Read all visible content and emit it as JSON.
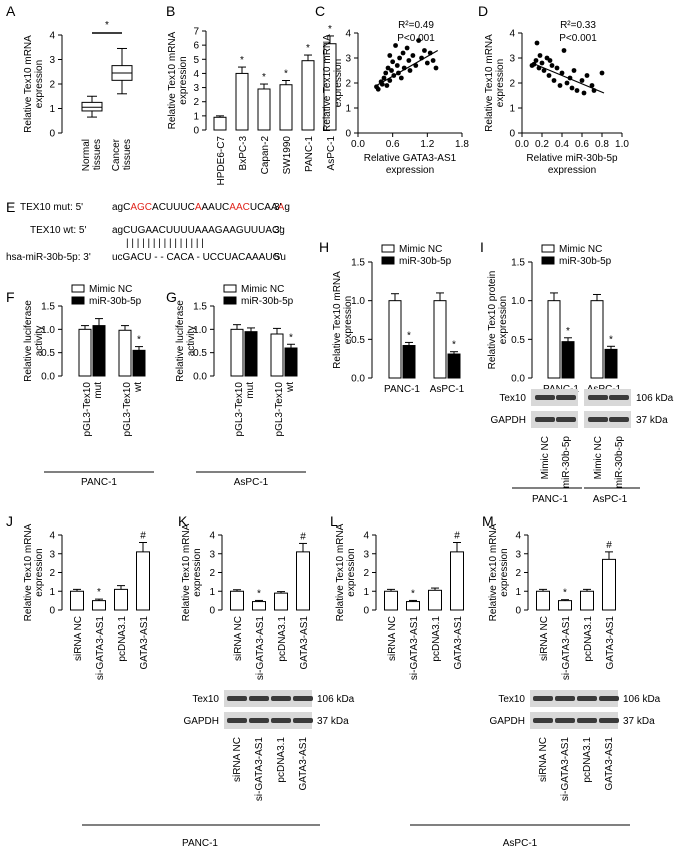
{
  "panels": {
    "A": {
      "label": "A",
      "ylabel": "Relative Tex10 mRNA expression",
      "yticks": [
        "0",
        "1",
        "2",
        "3",
        "4"
      ],
      "ylim": [
        0,
        4
      ],
      "categories": [
        "Normal tissues",
        "Cancer tissues"
      ],
      "boxes": [
        {
          "min": 0.65,
          "q1": 0.9,
          "median": 1.05,
          "q3": 1.25,
          "max": 1.5
        },
        {
          "min": 1.6,
          "q1": 2.15,
          "median": 2.45,
          "q3": 2.75,
          "max": 3.45
        }
      ],
      "sig": "*"
    },
    "B": {
      "label": "B",
      "ylabel": "Relative Tex10 mRNA expression",
      "yticks": [
        "0",
        "1",
        "2",
        "3",
        "4",
        "5",
        "6",
        "7"
      ],
      "ylim": [
        0,
        7
      ],
      "categories": [
        "HPDE6-C7",
        "BxPC-3",
        "Capan-2",
        "SW1990",
        "PANC-1",
        "AsPC-1"
      ],
      "values": [
        0.9,
        4.0,
        2.9,
        3.2,
        4.9,
        6.1
      ],
      "errors": [
        0.1,
        0.45,
        0.35,
        0.3,
        0.4,
        0.55
      ],
      "sig": [
        "",
        "*",
        "*",
        "*",
        "*",
        "*"
      ]
    },
    "C": {
      "label": "C",
      "stat1": "R²=0.49",
      "stat2": "P<0.001",
      "ylabel": "Relative Tex10 mRNA expression",
      "xlabel1": "Relative GATA3-AS1",
      "xlabel2": "expression",
      "yticks": [
        "0",
        "1",
        "2",
        "3",
        "4"
      ],
      "xticks": [
        "0.0",
        "0.6",
        "1.2",
        "1.8"
      ],
      "xlim": [
        0,
        1.8
      ],
      "ylim": [
        0,
        4
      ],
      "points": [
        [
          0.32,
          1.85
        ],
        [
          0.35,
          1.75
        ],
        [
          0.4,
          2.05
        ],
        [
          0.42,
          1.95
        ],
        [
          0.45,
          2.2
        ],
        [
          0.48,
          2.4
        ],
        [
          0.5,
          1.9
        ],
        [
          0.52,
          2.6
        ],
        [
          0.55,
          2.1
        ],
        [
          0.58,
          2.5
        ],
        [
          0.6,
          2.85
        ],
        [
          0.62,
          2.3
        ],
        [
          0.65,
          3.5
        ],
        [
          0.68,
          2.7
        ],
        [
          0.7,
          2.4
        ],
        [
          0.72,
          3.0
        ],
        [
          0.75,
          2.2
        ],
        [
          0.78,
          3.2
        ],
        [
          0.8,
          2.6
        ],
        [
          0.85,
          3.4
        ],
        [
          0.88,
          2.9
        ],
        [
          0.9,
          2.5
        ],
        [
          0.95,
          3.1
        ],
        [
          1.0,
          2.7
        ],
        [
          1.05,
          3.7
        ],
        [
          1.1,
          3.0
        ],
        [
          1.15,
          3.3
        ],
        [
          1.2,
          2.8
        ],
        [
          1.25,
          3.2
        ],
        [
          1.3,
          2.9
        ],
        [
          1.35,
          2.6
        ],
        [
          0.55,
          3.1
        ]
      ],
      "fit": [
        [
          0.32,
          1.9
        ],
        [
          1.38,
          3.3
        ]
      ]
    },
    "D": {
      "label": "D",
      "stat1": "R²=0.33",
      "stat2": "P<0.001",
      "ylabel": "Relative Tex10 mRNA expression",
      "xlabel1": "Relative miR-30b-5p",
      "xlabel2": "expression",
      "yticks": [
        "0",
        "1",
        "2",
        "3",
        "4"
      ],
      "xticks": [
        "0.0",
        "0.2",
        "0.4",
        "0.6",
        "0.8",
        "1.0"
      ],
      "xlim": [
        0,
        1.0
      ],
      "ylim": [
        0,
        4
      ],
      "points": [
        [
          0.12,
          2.75
        ],
        [
          0.14,
          2.9
        ],
        [
          0.15,
          3.6
        ],
        [
          0.17,
          2.6
        ],
        [
          0.18,
          3.1
        ],
        [
          0.2,
          2.8
        ],
        [
          0.22,
          2.5
        ],
        [
          0.25,
          3.0
        ],
        [
          0.27,
          2.3
        ],
        [
          0.3,
          2.7
        ],
        [
          0.32,
          2.1
        ],
        [
          0.35,
          2.6
        ],
        [
          0.38,
          1.9
        ],
        [
          0.4,
          2.4
        ],
        [
          0.42,
          3.3
        ],
        [
          0.45,
          2.0
        ],
        [
          0.48,
          2.2
        ],
        [
          0.5,
          1.8
        ],
        [
          0.52,
          2.5
        ],
        [
          0.55,
          1.7
        ],
        [
          0.6,
          2.1
        ],
        [
          0.62,
          1.6
        ],
        [
          0.65,
          2.3
        ],
        [
          0.7,
          1.9
        ],
        [
          0.72,
          1.7
        ],
        [
          0.8,
          2.4
        ],
        [
          0.1,
          2.7
        ],
        [
          0.28,
          2.9
        ]
      ],
      "fit": [
        [
          0.1,
          2.8
        ],
        [
          0.82,
          1.6
        ]
      ]
    },
    "E": {
      "label": "E",
      "mut_label": "TEX10 mut: 5'",
      "mut_seq": [
        {
          "t": "agC",
          "r": false
        },
        {
          "t": "AGC",
          "r": true
        },
        {
          "t": "ACUUUC",
          "r": false
        },
        {
          "t": "A",
          "r": true
        },
        {
          "t": "AAUC",
          "r": false
        },
        {
          "t": "AAC",
          "r": true
        },
        {
          "t": "UCAA",
          "r": false
        },
        {
          "t": "A",
          "r": true
        },
        {
          "t": "g",
          "r": false
        }
      ],
      "mut_end": "3'",
      "wt_label": "TEX10 wt: 5'",
      "wt_seq": "agCUGAACUUUUAAAGAAGUUUACg",
      "wt_end": "3'",
      "bars": "| | | | |          | | |          | | | | | | |",
      "mir_label": "hsa-miR-30b-5p: 3'",
      "mir_seq": "ucGACU - - CACA - UCCUACAAAUGu",
      "mir_end": "5'"
    },
    "F": {
      "label": "F",
      "ylabel": "Relative luciferase activity",
      "yticks": [
        "0.0",
        "0.5",
        "1.0",
        "1.5"
      ],
      "ylim": [
        0,
        1.5
      ],
      "legend": [
        "Mimic NC",
        "miR-30b-5p"
      ],
      "groups": [
        "pGL3-Tex10 mut",
        "pGL3-Tex10 wt"
      ],
      "nc": [
        1.0,
        0.98
      ],
      "nc_err": [
        0.08,
        0.1
      ],
      "mir": [
        1.08,
        0.55
      ],
      "mir_err": [
        0.15,
        0.08
      ],
      "sig": [
        "",
        "*"
      ],
      "cell": "PANC-1"
    },
    "G": {
      "label": "G",
      "ylabel": "Relative luciferase activity",
      "yticks": [
        "0.0",
        "0.5",
        "1.0",
        "1.5"
      ],
      "ylim": [
        0,
        1.5
      ],
      "legend": [
        "Mimic NC",
        "miR-30b-5p"
      ],
      "groups": [
        "pGL3-Tex10 mut",
        "pGL3-Tex10 wt"
      ],
      "nc": [
        1.0,
        0.9
      ],
      "nc_err": [
        0.1,
        0.12
      ],
      "mir": [
        0.95,
        0.6
      ],
      "mir_err": [
        0.08,
        0.08
      ],
      "sig": [
        "",
        "*"
      ],
      "cell": "AsPC-1"
    },
    "H": {
      "label": "H",
      "ylabel": "Relative Tex10 mRNA expression",
      "yticks": [
        "0.0",
        "0.5",
        "1.0",
        "1.5"
      ],
      "ylim": [
        0,
        1.5
      ],
      "legend": [
        "Mimic NC",
        "miR-30b-5p"
      ],
      "groups": [
        "PANC-1",
        "AsPC-1"
      ],
      "nc": [
        1.0,
        1.0
      ],
      "nc_err": [
        0.09,
        0.1
      ],
      "mir": [
        0.42,
        0.31
      ],
      "mir_err": [
        0.04,
        0.03
      ],
      "sig": [
        "*",
        "*"
      ]
    },
    "I": {
      "label": "I",
      "ylabel": "Relative Tex10 protein expression",
      "yticks": [
        "0.0",
        "0.5",
        "1.0",
        "1.5"
      ],
      "ylim": [
        0,
        1.5
      ],
      "legend": [
        "Mimic NC",
        "miR-30b-5p"
      ],
      "groups": [
        "PANC-1",
        "AsPC-1"
      ],
      "nc": [
        1.0,
        1.0
      ],
      "nc_err": [
        0.1,
        0.08
      ],
      "mir": [
        0.47,
        0.37
      ],
      "mir_err": [
        0.05,
        0.04
      ],
      "sig": [
        "*",
        "*"
      ],
      "blot_rows": [
        "Tex10",
        "GAPDH"
      ],
      "blot_sizes": [
        "106 kDa",
        "37 kDa"
      ],
      "lanes": [
        "Mimic NC",
        "miR-30b-5p",
        "Mimic NC",
        "miR-30b-5p"
      ],
      "cells": [
        "PANC-1",
        "AsPC-1"
      ]
    },
    "J": {
      "label": "J",
      "ylabel": "Relative Tex10 mRNA expression",
      "yticks": [
        "0",
        "1",
        "2",
        "3",
        "4"
      ],
      "ylim": [
        0,
        4
      ],
      "categories": [
        "siRNA NC",
        "si-GATA3-AS1",
        "pcDNA3.1",
        "GATA3-AS1"
      ],
      "values": [
        1.0,
        0.5,
        1.1,
        3.1
      ],
      "errors": [
        0.1,
        0.08,
        0.2,
        0.5
      ],
      "sig": [
        "",
        "*",
        "",
        "#"
      ]
    },
    "K": {
      "label": "K",
      "ylabel": "Relative Tex10 mRNA expression",
      "yticks": [
        "0",
        "1",
        "2",
        "3",
        "4"
      ],
      "ylim": [
        0,
        4
      ],
      "categories": [
        "siRNA NC",
        "si-GATA3-AS1",
        "pcDNA3.1",
        "GATA3-AS1"
      ],
      "values": [
        1.0,
        0.45,
        0.9,
        3.1
      ],
      "errors": [
        0.08,
        0.06,
        0.08,
        0.45
      ],
      "sig": [
        "",
        "*",
        "",
        "#"
      ],
      "blot_rows": [
        "Tex10",
        "GAPDH"
      ],
      "blot_sizes": [
        "106 kDa",
        "37 kDa"
      ],
      "lanes": [
        "siRNA NC",
        "si-GATA3-AS1",
        "pcDNA3.1",
        "GATA3-AS1"
      ],
      "cell": "PANC-1"
    },
    "L": {
      "label": "L",
      "ylabel": "Relative Tex10 mRNA expression",
      "yticks": [
        "0",
        "1",
        "2",
        "3",
        "4"
      ],
      "ylim": [
        0,
        4
      ],
      "categories": [
        "siRNA NC",
        "si-GATA3-AS1",
        "pcDNA3.1",
        "GATA3-AS1"
      ],
      "values": [
        1.0,
        0.45,
        1.05,
        3.1
      ],
      "errors": [
        0.1,
        0.06,
        0.12,
        0.5
      ],
      "sig": [
        "",
        "*",
        "",
        "#"
      ]
    },
    "M": {
      "label": "M",
      "ylabel": "Relative Tex10 mRNA expression",
      "yticks": [
        "0",
        "1",
        "2",
        "3",
        "4"
      ],
      "ylim": [
        0,
        4
      ],
      "categories": [
        "siRNA NC",
        "si-GATA3-AS1",
        "pcDNA3.1",
        "GATA3-AS1"
      ],
      "values": [
        1.0,
        0.5,
        1.0,
        2.7
      ],
      "errors": [
        0.1,
        0.05,
        0.1,
        0.4
      ],
      "sig": [
        "",
        "*",
        "",
        "#"
      ],
      "blot_rows": [
        "Tex10",
        "GAPDH"
      ],
      "blot_sizes": [
        "106 kDa",
        "37 kDa"
      ],
      "lanes": [
        "siRNA NC",
        "si-GATA3-AS1",
        "pcDNA3.1",
        "GATA3-AS1"
      ],
      "cell": "AsPC-1"
    }
  },
  "chart_data": [
    {
      "panel": "A",
      "type": "box",
      "categories": [
        "Normal tissues",
        "Cancer tissues"
      ],
      "ylabel": "Relative Tex10 mRNA expression",
      "ylim": [
        0,
        4
      ],
      "median": [
        1.05,
        2.45
      ]
    },
    {
      "panel": "B",
      "type": "bar",
      "categories": [
        "HPDE6-C7",
        "BxPC-3",
        "Capan-2",
        "SW1990",
        "PANC-1",
        "AsPC-1"
      ],
      "values": [
        0.9,
        4.0,
        2.9,
        3.2,
        4.9,
        6.1
      ],
      "ylabel": "Relative Tex10 mRNA expression",
      "ylim": [
        0,
        7
      ]
    },
    {
      "panel": "C",
      "type": "scatter",
      "xlabel": "Relative GATA3-AS1 expression",
      "ylabel": "Relative Tex10 mRNA expression",
      "annotation": "R²=0.49, P<0.001",
      "xlim": [
        0,
        1.8
      ],
      "ylim": [
        0,
        4
      ]
    },
    {
      "panel": "D",
      "type": "scatter",
      "xlabel": "Relative miR-30b-5p expression",
      "ylabel": "Relative Tex10 mRNA expression",
      "annotation": "R²=0.33, P<0.001",
      "xlim": [
        0,
        1.0
      ],
      "ylim": [
        0,
        4
      ]
    },
    {
      "panel": "F",
      "type": "bar",
      "categories": [
        "pGL3-Tex10 mut",
        "pGL3-Tex10 wt"
      ],
      "series": [
        {
          "name": "Mimic NC",
          "values": [
            1.0,
            0.98
          ]
        },
        {
          "name": "miR-30b-5p",
          "values": [
            1.08,
            0.55
          ]
        }
      ],
      "ylim": [
        0,
        1.5
      ]
    },
    {
      "panel": "G",
      "type": "bar",
      "categories": [
        "pGL3-Tex10 mut",
        "pGL3-Tex10 wt"
      ],
      "series": [
        {
          "name": "Mimic NC",
          "values": [
            1.0,
            0.9
          ]
        },
        {
          "name": "miR-30b-5p",
          "values": [
            0.95,
            0.6
          ]
        }
      ],
      "ylim": [
        0,
        1.5
      ]
    },
    {
      "panel": "H",
      "type": "bar",
      "categories": [
        "PANC-1",
        "AsPC-1"
      ],
      "series": [
        {
          "name": "Mimic NC",
          "values": [
            1.0,
            1.0
          ]
        },
        {
          "name": "miR-30b-5p",
          "values": [
            0.42,
            0.31
          ]
        }
      ],
      "ylim": [
        0,
        1.5
      ]
    },
    {
      "panel": "I",
      "type": "bar",
      "categories": [
        "PANC-1",
        "AsPC-1"
      ],
      "series": [
        {
          "name": "Mimic NC",
          "values": [
            1.0,
            1.0
          ]
        },
        {
          "name": "miR-30b-5p",
          "values": [
            0.47,
            0.37
          ]
        }
      ],
      "ylim": [
        0,
        1.5
      ]
    },
    {
      "panel": "J",
      "type": "bar",
      "categories": [
        "siRNA NC",
        "si-GATA3-AS1",
        "pcDNA3.1",
        "GATA3-AS1"
      ],
      "values": [
        1.0,
        0.5,
        1.1,
        3.1
      ],
      "ylim": [
        0,
        4
      ]
    },
    {
      "panel": "K",
      "type": "bar",
      "categories": [
        "siRNA NC",
        "si-GATA3-AS1",
        "pcDNA3.1",
        "GATA3-AS1"
      ],
      "values": [
        1.0,
        0.45,
        0.9,
        3.1
      ],
      "ylim": [
        0,
        4
      ]
    },
    {
      "panel": "L",
      "type": "bar",
      "categories": [
        "siRNA NC",
        "si-GATA3-AS1",
        "pcDNA3.1",
        "GATA3-AS1"
      ],
      "values": [
        1.0,
        0.45,
        1.05,
        3.1
      ],
      "ylim": [
        0,
        4
      ]
    },
    {
      "panel": "M",
      "type": "bar",
      "categories": [
        "siRNA NC",
        "si-GATA3-AS1",
        "pcDNA3.1",
        "GATA3-AS1"
      ],
      "values": [
        1.0,
        0.5,
        1.0,
        2.7
      ],
      "ylim": [
        0,
        4
      ]
    }
  ]
}
